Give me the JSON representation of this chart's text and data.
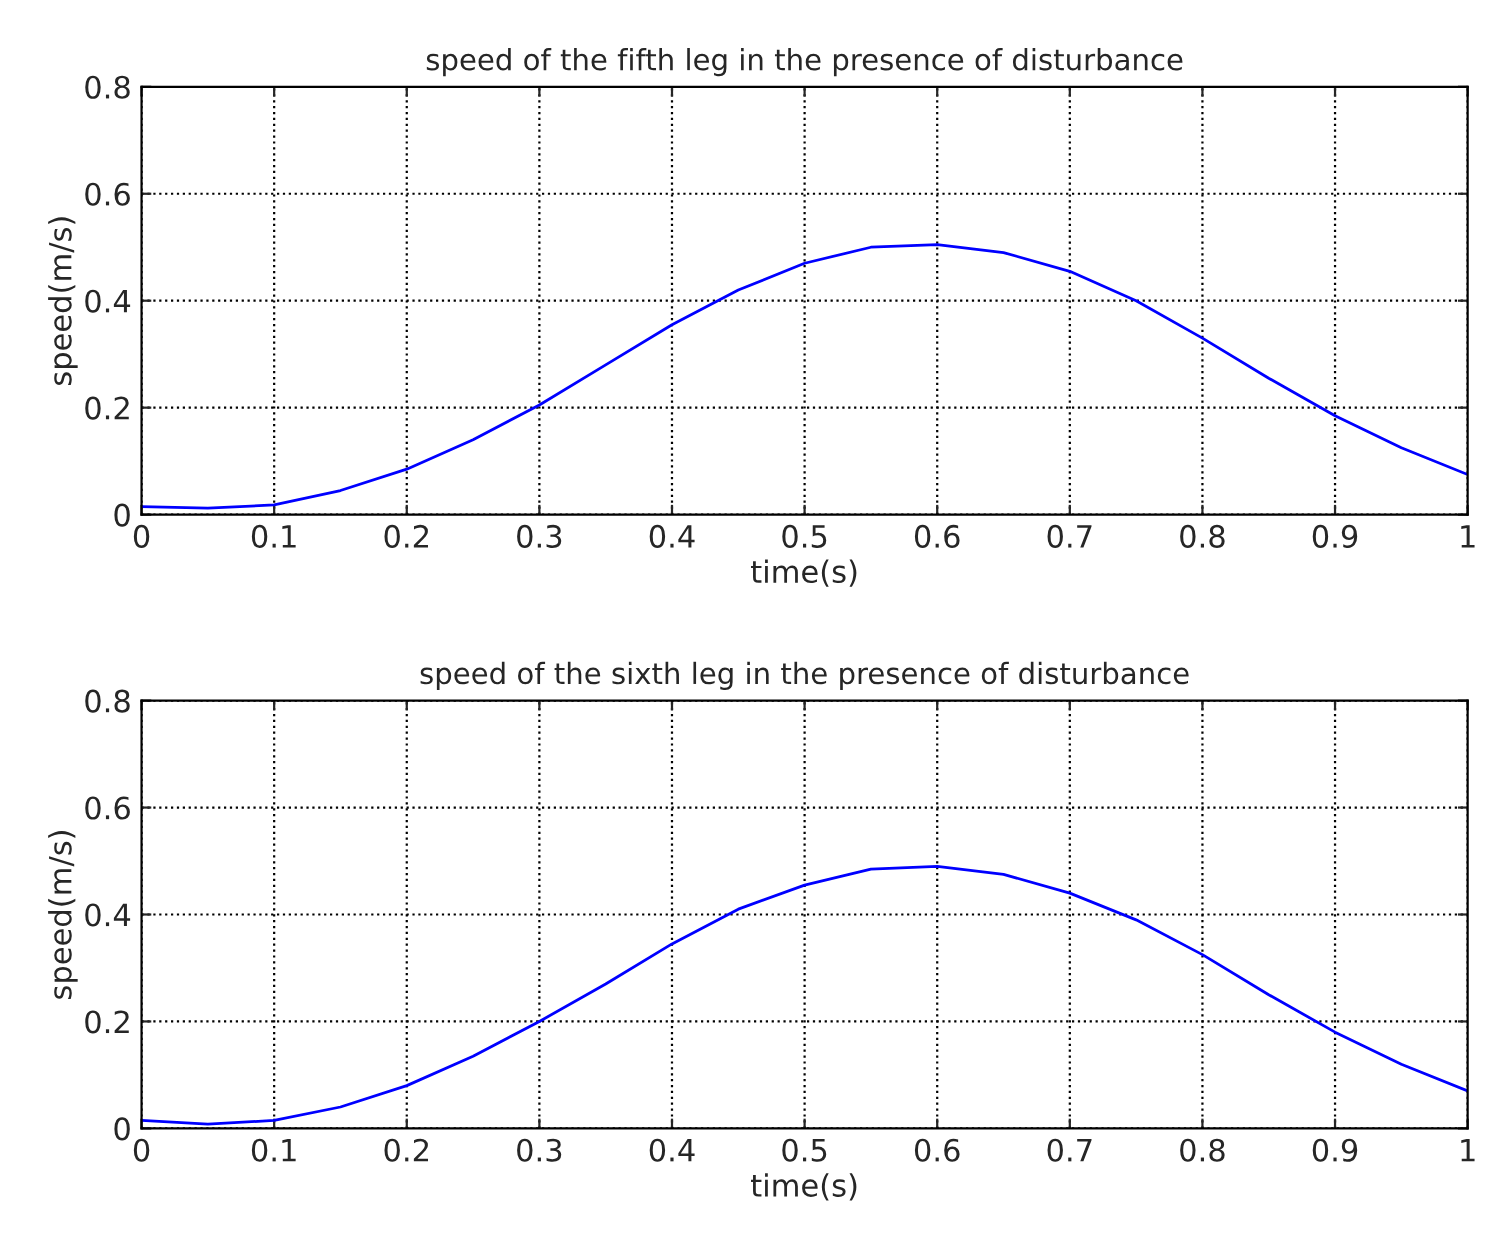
{
  "chart_data": [
    {
      "type": "line",
      "title": "speed of the fifth leg in the presence of disturbance",
      "xlabel": "time(s)",
      "ylabel": "speed(m/s)",
      "x": [
        0,
        0.05,
        0.1,
        0.15,
        0.2,
        0.25,
        0.3,
        0.35,
        0.4,
        0.45,
        0.5,
        0.55,
        0.6,
        0.65,
        0.7,
        0.75,
        0.8,
        0.85,
        0.9,
        0.95,
        1.0
      ],
      "series": [
        {
          "color": "#0000ff",
          "values": [
            0.015,
            0.012,
            0.018,
            0.045,
            0.085,
            0.14,
            0.205,
            0.28,
            0.355,
            0.42,
            0.47,
            0.5,
            0.505,
            0.49,
            0.455,
            0.4,
            0.33,
            0.255,
            0.185,
            0.125,
            0.075
          ]
        }
      ],
      "xlim": [
        0,
        1
      ],
      "ylim": [
        0,
        0.8
      ],
      "xticks": [
        0,
        0.1,
        0.2,
        0.3,
        0.4,
        0.5,
        0.6,
        0.7,
        0.8,
        0.9,
        1
      ],
      "yticks": [
        0,
        0.2,
        0.4,
        0.6,
        0.8
      ],
      "grid": true,
      "line_style": "solid"
    },
    {
      "type": "line",
      "title": "speed of the sixth leg in the presence of disturbance",
      "xlabel": "time(s)",
      "ylabel": "speed(m/s)",
      "x": [
        0,
        0.05,
        0.1,
        0.15,
        0.2,
        0.25,
        0.3,
        0.35,
        0.4,
        0.45,
        0.5,
        0.55,
        0.6,
        0.65,
        0.7,
        0.75,
        0.8,
        0.85,
        0.9,
        0.95,
        1.0
      ],
      "series": [
        {
          "color": "#0000ff",
          "values": [
            0.015,
            0.008,
            0.015,
            0.04,
            0.08,
            0.135,
            0.2,
            0.27,
            0.345,
            0.41,
            0.455,
            0.485,
            0.49,
            0.475,
            0.44,
            0.39,
            0.325,
            0.25,
            0.18,
            0.12,
            0.07
          ]
        }
      ],
      "xlim": [
        0,
        1
      ],
      "ylim": [
        0,
        0.8
      ],
      "xticks": [
        0,
        0.1,
        0.2,
        0.3,
        0.4,
        0.5,
        0.6,
        0.7,
        0.8,
        0.9,
        1
      ],
      "yticks": [
        0,
        0.2,
        0.4,
        0.6,
        0.8
      ],
      "grid": true,
      "line_style": "solid"
    }
  ]
}
